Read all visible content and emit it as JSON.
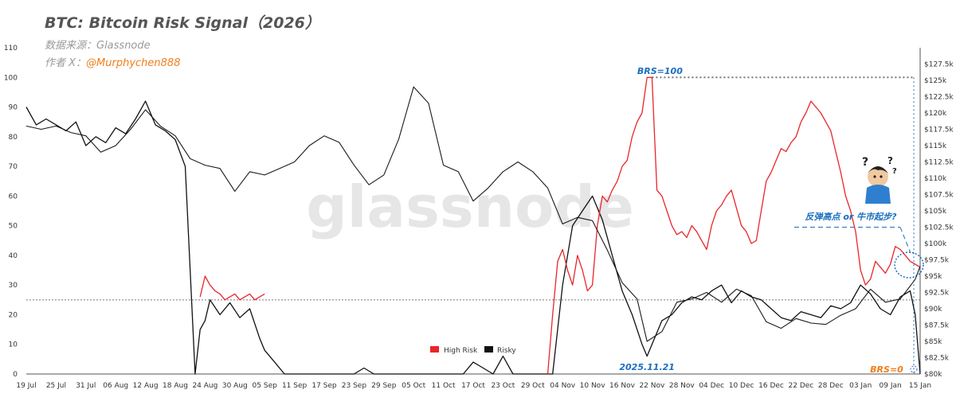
{
  "header": {
    "title": "BTC: Bitcoin Risk Signal（2026）",
    "source": "数据来源：Glassnode",
    "author_prefix": "作者 X：",
    "author_handle": "@Murphychen888"
  },
  "watermark": "glassnode",
  "colors": {
    "high_risk": "#e8262a",
    "risky": "#111111",
    "blue": "#1a6fbf",
    "orange": "#f07d1a",
    "dotted": "#777777"
  },
  "annotations": {
    "brs100": "BRS=100",
    "brs0": "BRS=0",
    "date": "2025.11.21",
    "question": "反弹高点  or 牛市起步?"
  },
  "chart_data": {
    "type": "line",
    "title": "BTC: Bitcoin Risk Signal（2026）",
    "x_tick_labels": [
      "19 Jul",
      "25 Jul",
      "31 Jul",
      "06 Aug",
      "12 Aug",
      "18 Aug",
      "24 Aug",
      "30 Aug",
      "05 Sep",
      "11 Sep",
      "17 Sep",
      "23 Sep",
      "29 Sep",
      "05 Oct",
      "11 Oct",
      "17 Oct",
      "23 Oct",
      "29 Oct",
      "04 Nov",
      "10 Nov",
      "16 Nov",
      "22 Nov",
      "28 Nov",
      "04 Dec",
      "10 Dec",
      "16 Dec",
      "22 Dec",
      "28 Dec",
      "03 Jan",
      "09 Jan",
      "15 Jan"
    ],
    "ylim_left": [
      0,
      110
    ],
    "left_ticks": [
      0,
      10,
      20,
      30,
      40,
      50,
      60,
      70,
      80,
      90,
      100,
      110
    ],
    "ylim_right": [
      80000,
      130000
    ],
    "right_tick_labels": [
      "$80k",
      "$82.5k",
      "$85k",
      "$87.5k",
      "$90k",
      "$92.5k",
      "$95k",
      "$97.5k",
      "$100k",
      "$102.5k",
      "$105k",
      "$107.5k",
      "$110k",
      "$112.5k",
      "$115k",
      "$117.5k",
      "$120k",
      "$122.5k",
      "$125k",
      "$127.5k"
    ],
    "legend": {
      "placement": "bottom-center",
      "entries": [
        "High Risk",
        "Risky"
      ]
    },
    "series": [
      {
        "name": "High Risk",
        "axis": "left",
        "x": [
          "23 Aug",
          "24 Aug",
          "25 Aug",
          "26 Aug",
          "27 Aug",
          "28 Aug",
          "29 Aug",
          "30 Aug",
          "31 Aug",
          "01 Sep",
          "02 Sep",
          "03 Sep",
          "04 Sep",
          "05 Sep",
          "01 Nov",
          "02 Nov",
          "03 Nov",
          "04 Nov",
          "05 Nov",
          "06 Nov",
          "07 Nov",
          "08 Nov",
          "09 Nov",
          "10 Nov",
          "11 Nov",
          "12 Nov",
          "13 Nov",
          "14 Nov",
          "15 Nov",
          "16 Nov",
          "17 Nov",
          "18 Nov",
          "19 Nov",
          "20 Nov",
          "21 Nov",
          "22 Nov",
          "23 Nov",
          "24 Nov",
          "25 Nov",
          "26 Nov",
          "27 Nov",
          "28 Nov",
          "29 Nov",
          "30 Nov",
          "01 Dec",
          "02 Dec",
          "03 Dec",
          "04 Dec",
          "05 Dec",
          "06 Dec",
          "07 Dec",
          "08 Dec",
          "09 Dec",
          "10 Dec",
          "11 Dec",
          "12 Dec",
          "13 Dec",
          "14 Dec",
          "15 Dec",
          "16 Dec",
          "17 Dec",
          "18 Dec",
          "19 Dec",
          "20 Dec",
          "21 Dec",
          "22 Dec",
          "23 Dec",
          "24 Dec",
          "25 Dec",
          "26 Dec",
          "27 Dec",
          "28 Dec",
          "29 Dec",
          "30 Dec",
          "31 Dec",
          "01 Jan",
          "02 Jan",
          "03 Jan",
          "04 Jan",
          "05 Jan",
          "06 Jan",
          "07 Jan",
          "08 Jan",
          "09 Jan",
          "10 Jan",
          "11 Jan",
          "12 Jan",
          "13 Jan",
          "14 Jan",
          "15 Jan"
        ],
        "values": [
          26,
          33,
          30,
          28,
          27,
          25,
          26,
          27,
          25,
          26,
          27,
          25,
          26,
          27,
          0,
          20,
          38,
          42,
          35,
          30,
          40,
          35,
          28,
          30,
          50,
          60,
          58,
          62,
          65,
          70,
          72,
          80,
          85,
          88,
          100,
          100,
          62,
          60,
          55,
          50,
          47,
          48,
          46,
          50,
          48,
          45,
          42,
          50,
          55,
          57,
          60,
          62,
          56,
          50,
          48,
          44,
          45,
          55,
          65,
          68,
          72,
          76,
          75,
          78,
          80,
          85,
          88,
          92,
          90,
          88,
          85,
          82,
          75,
          68,
          60,
          55,
          48,
          35,
          30,
          32,
          38,
          36,
          34,
          37,
          43,
          42,
          40,
          38,
          37,
          36
        ],
        "color": "#e8262a"
      },
      {
        "name": "Risky",
        "axis": "left",
        "x": [
          "19 Jul",
          "21 Jul",
          "23 Jul",
          "25 Jul",
          "27 Jul",
          "29 Jul",
          "31 Jul",
          "02 Aug",
          "04 Aug",
          "06 Aug",
          "08 Aug",
          "10 Aug",
          "12 Aug",
          "14 Aug",
          "16 Aug",
          "18 Aug",
          "20 Aug",
          "22 Aug",
          "23 Aug",
          "24 Aug",
          "25 Aug",
          "27 Aug",
          "29 Aug",
          "31 Aug",
          "02 Sep",
          "04 Sep",
          "05 Sep",
          "07 Sep",
          "09 Sep",
          "11 Sep",
          "13 Sep",
          "15 Sep",
          "17 Sep",
          "19 Sep",
          "21 Sep",
          "23 Sep",
          "25 Sep",
          "27 Sep",
          "29 Sep",
          "01 Oct",
          "03 Oct",
          "05 Oct",
          "07 Oct",
          "09 Oct",
          "11 Oct",
          "13 Oct",
          "15 Oct",
          "17 Oct",
          "19 Oct",
          "21 Oct",
          "23 Oct",
          "25 Oct",
          "27 Oct",
          "29 Oct",
          "31 Oct",
          "02 Nov",
          "04 Nov",
          "06 Nov",
          "08 Nov",
          "10 Nov",
          "12 Nov",
          "14 Nov",
          "16 Nov",
          "18 Nov",
          "20 Nov",
          "21 Nov",
          "22 Nov",
          "24 Nov",
          "26 Nov",
          "28 Nov",
          "30 Nov",
          "02 Dec",
          "04 Dec",
          "06 Dec",
          "08 Dec",
          "10 Dec",
          "12 Dec",
          "14 Dec",
          "16 Dec",
          "18 Dec",
          "20 Dec",
          "22 Dec",
          "24 Dec",
          "26 Dec",
          "28 Dec",
          "30 Dec",
          "01 Jan",
          "03 Jan",
          "05 Jan",
          "07 Jan",
          "09 Jan",
          "11 Jan",
          "13 Jan",
          "14 Jan",
          "15 Jan"
        ],
        "values": [
          90,
          84,
          86,
          84,
          82,
          85,
          77,
          80,
          78,
          83,
          81,
          86,
          92,
          84,
          82,
          79,
          70,
          0,
          15,
          18,
          25,
          20,
          24,
          19,
          22,
          12,
          8,
          4,
          0,
          0,
          0,
          0,
          0,
          0,
          0,
          0,
          2,
          0,
          0,
          0,
          0,
          0,
          0,
          0,
          0,
          0,
          0,
          4,
          2,
          0,
          6,
          0,
          0,
          0,
          0,
          0,
          30,
          50,
          55,
          60,
          52,
          40,
          28,
          20,
          10,
          6,
          10,
          18,
          20,
          24,
          26,
          25,
          28,
          30,
          24,
          28,
          26,
          25,
          22,
          19,
          18,
          21,
          20,
          19,
          23,
          22,
          24,
          30,
          27,
          22,
          20,
          26,
          28,
          20,
          0
        ],
        "color": "#111111"
      },
      {
        "name": "BTC price",
        "axis": "right",
        "x": [
          "19 Jul",
          "22 Jul",
          "25 Jul",
          "28 Jul",
          "31 Jul",
          "03 Aug",
          "06 Aug",
          "09 Aug",
          "12 Aug",
          "15 Aug",
          "18 Aug",
          "21 Aug",
          "24 Aug",
          "27 Aug",
          "30 Aug",
          "02 Sep",
          "05 Sep",
          "08 Sep",
          "11 Sep",
          "14 Sep",
          "17 Sep",
          "20 Sep",
          "23 Sep",
          "26 Sep",
          "29 Sep",
          "02 Oct",
          "05 Oct",
          "08 Oct",
          "11 Oct",
          "14 Oct",
          "17 Oct",
          "20 Oct",
          "23 Oct",
          "26 Oct",
          "29 Oct",
          "01 Nov",
          "04 Nov",
          "07 Nov",
          "10 Nov",
          "13 Nov",
          "16 Nov",
          "19 Nov",
          "21 Nov",
          "24 Nov",
          "27 Nov",
          "30 Nov",
          "03 Dec",
          "06 Dec",
          "09 Dec",
          "12 Dec",
          "15 Dec",
          "18 Dec",
          "21 Dec",
          "24 Dec",
          "27 Dec",
          "30 Dec",
          "02 Jan",
          "05 Jan",
          "08 Jan",
          "11 Jan",
          "14 Jan",
          "15 Jan"
        ],
        "values": [
          118000,
          117500,
          118000,
          117000,
          116500,
          114000,
          115000,
          117500,
          120500,
          118000,
          116500,
          113000,
          112000,
          111500,
          108000,
          111000,
          110500,
          111500,
          112500,
          115000,
          116500,
          115500,
          112000,
          109000,
          110500,
          116000,
          124000,
          121500,
          112000,
          111000,
          106500,
          108500,
          111000,
          112500,
          111000,
          108500,
          103000,
          104000,
          103500,
          99000,
          94000,
          91500,
          85000,
          86500,
          91000,
          91500,
          92500,
          91000,
          93000,
          92000,
          88000,
          87000,
          88500,
          87800,
          87600,
          89000,
          90000,
          93000,
          91000,
          91500,
          94500,
          96500
        ]
      }
    ],
    "annotations": [
      {
        "text": "BRS=100",
        "x": "22 Nov",
        "y": 100
      },
      {
        "text": "2025.11.21",
        "x": "21 Nov",
        "y": 0
      },
      {
        "text": "BRS=0",
        "x": "15 Jan",
        "y": 0
      },
      {
        "text": "反弹高点  or 牛市起步?",
        "x": "11 Jan",
        "y": 50
      }
    ],
    "reference_lines": [
      {
        "type": "horizontal",
        "axis": "left",
        "y": 25,
        "style": "dotted"
      },
      {
        "type": "horizontal",
        "axis": "left",
        "y": 100,
        "style": "dotted"
      },
      {
        "type": "horizontal",
        "axis": "right",
        "y": 102500,
        "style": "dashed"
      }
    ],
    "grid": false
  }
}
